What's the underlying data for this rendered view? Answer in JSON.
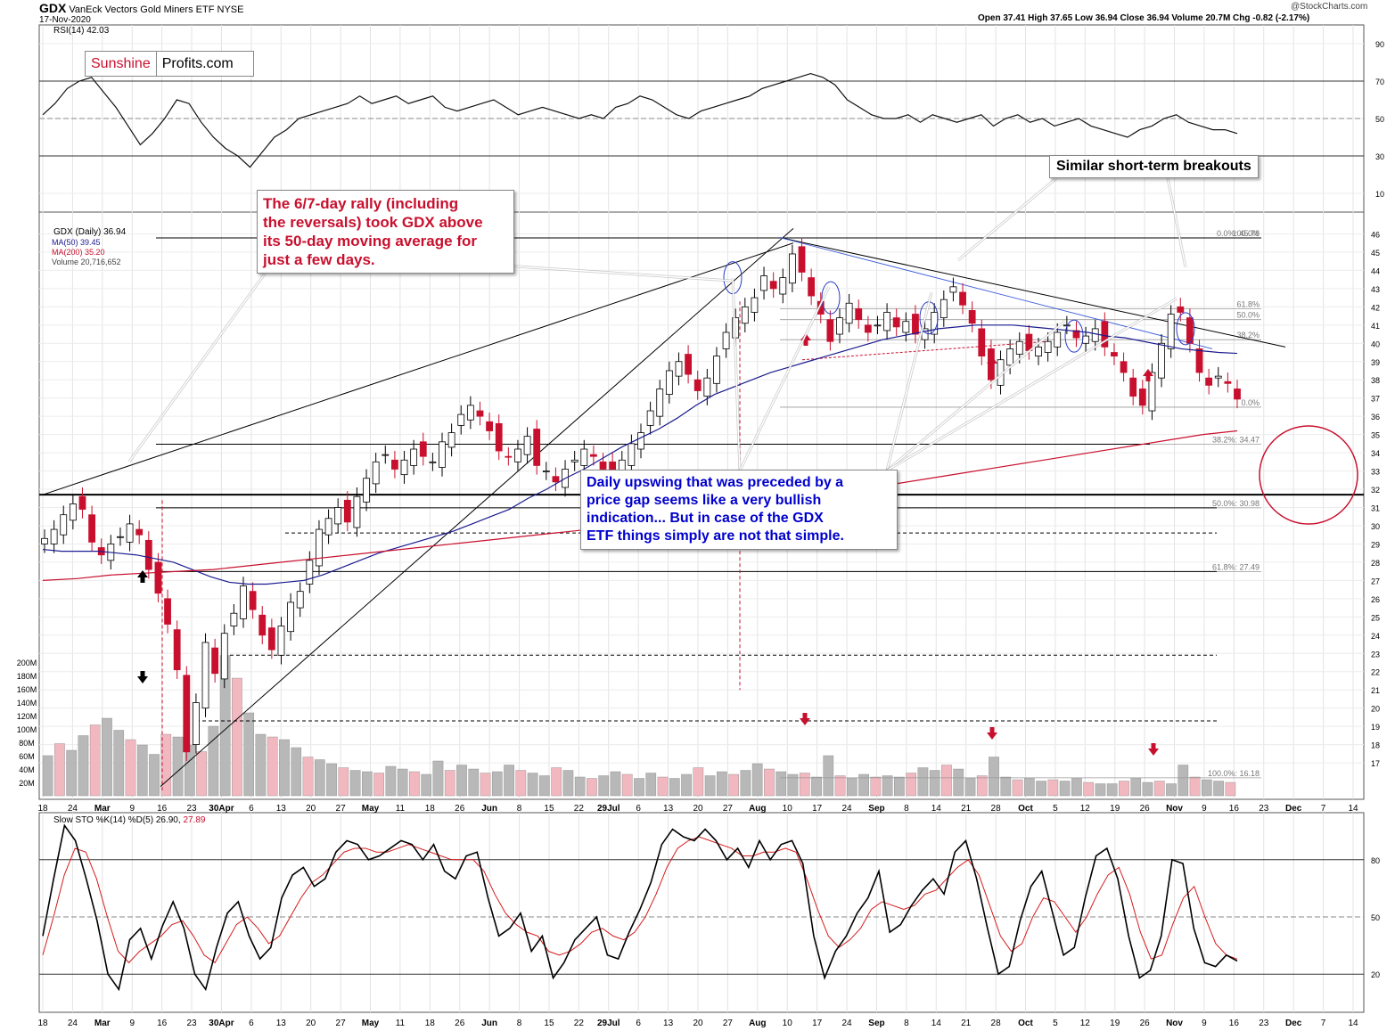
{
  "header": {
    "symbol": "GDX",
    "name": "VanEck Vectors Gold Miners ETF",
    "exchange": "NYSE",
    "date": "17-Nov-2020",
    "watermark": "@StockCharts.com",
    "ohlc": "Open 37.41  High 37.65  Low 36.94  Close 36.94  Volume 20.7M  Chg -0.82 (-2.17%)",
    "rsi_label": "RSI(14) 42.03"
  },
  "logo": {
    "part1": "Sunshine",
    "part2": "Profits.com"
  },
  "legend": {
    "gdx": "GDX (Daily) 36.94",
    "ma50": "MA(50) 39.45",
    "ma200": "MA(200) 35.20",
    "volume": "Volume 20,716,652"
  },
  "sto_label": {
    "k": "Slow STO %K(14) %D(5) 26.90,",
    "d": "27.89"
  },
  "annotations": {
    "rally_text": "The 6/7-day rally (including the reversals) took GDX above its 50-day moving average for just a few days.",
    "rally_lines": [
      "The 6/7-day rally (including",
      "the reversals) took GDX above",
      "its 50-day moving average for",
      "just a few days."
    ],
    "breakouts_text": "Similar short-term breakouts",
    "upswing_lines": [
      "Daily upswing that was preceded by a",
      "price gap seems like a very bullish",
      "indication... But in case of the GDX",
      "ETF things simply are not that simple."
    ]
  },
  "colors": {
    "up": "#ffffff",
    "down": "#c8102e",
    "ma50": "#1b1b8f",
    "ma200": "#c8102e",
    "text_red": "#c8102e",
    "text_blue": "#0000cc",
    "vol_up": "#b8b8b8",
    "vol_down": "#f2b8c0"
  },
  "chart_data": [
    {
      "type": "line",
      "panel": "RSI",
      "title": "RSI(14) 42.03",
      "ylim": [
        0,
        100
      ],
      "y_ticks": [
        "90",
        "70",
        "50",
        "30",
        "10"
      ],
      "reference_lines": [
        70,
        30
      ],
      "values": [
        52,
        58,
        66,
        70,
        72,
        64,
        56,
        46,
        36,
        42,
        50,
        60,
        58,
        48,
        40,
        34,
        30,
        24,
        32,
        40,
        44,
        50,
        52,
        54,
        56,
        58,
        62,
        58,
        60,
        62,
        58,
        60,
        62,
        56,
        54,
        56,
        58,
        60,
        56,
        52,
        54,
        56,
        54,
        52,
        50,
        52,
        50,
        56,
        58,
        62,
        60,
        56,
        52,
        50,
        54,
        56,
        58,
        60,
        62,
        66,
        68,
        70,
        72,
        74,
        72,
        68,
        60,
        56,
        52,
        50,
        50,
        52,
        48,
        52,
        50,
        48,
        50,
        52,
        46,
        50,
        52,
        48,
        50,
        46,
        48,
        50,
        46,
        44,
        42,
        40,
        44,
        46,
        50,
        52,
        48,
        46,
        44,
        44,
        42
      ]
    },
    {
      "type": "candlestick",
      "panel": "Price",
      "ylabel": "",
      "ylim": [
        15,
        47
      ],
      "y_ticks": [
        "46",
        "45",
        "44",
        "43",
        "42",
        "41",
        "40",
        "39",
        "38",
        "37",
        "36",
        "35",
        "34",
        "33",
        "32",
        "31",
        "30",
        "29",
        "28",
        "27",
        "26",
        "25",
        "24",
        "23",
        "22",
        "21",
        "20",
        "19",
        "18",
        "17"
      ],
      "x_ticks": [
        "18",
        "24",
        "Mar",
        "9",
        "16",
        "23",
        "30Apr",
        "6",
        "13",
        "20",
        "27",
        "May",
        "11",
        "18",
        "26",
        "Jun",
        "8",
        "15",
        "22",
        "29Jul",
        "6",
        "13",
        "20",
        "27",
        "Aug",
        "10",
        "17",
        "24",
        "Sep",
        "8",
        "14",
        "21",
        "28",
        "Oct",
        "5",
        "12",
        "19",
        "26",
        "Nov",
        "9",
        "16",
        "23",
        "Dec",
        "7",
        "14"
      ],
      "series": [
        {
          "name": "GDX (Daily) 36.94"
        },
        {
          "name": "MA(50) 39.45"
        },
        {
          "name": "MA(200) 35.20"
        }
      ],
      "close": [
        29.3,
        29.8,
        30.6,
        31.2,
        30.9,
        29.1,
        28.4,
        29.0,
        29.4,
        30.1,
        29.5,
        27.6,
        26.3,
        24.6,
        22.1,
        17.6,
        20.3,
        23.6,
        21.9,
        24.1,
        25.2,
        26.7,
        25.4,
        24.0,
        23.2,
        24.5,
        25.8,
        26.4,
        28.1,
        29.8,
        30.4,
        31.0,
        30.2,
        31.6,
        32.6,
        33.5,
        33.9,
        33.1,
        33.6,
        34.2,
        33.8,
        33.5,
        34.6,
        35.1,
        36.1,
        36.6,
        36.0,
        35.2,
        34.1,
        33.8,
        34.2,
        34.9,
        33.3,
        33.0,
        32.4,
        33.1,
        33.6,
        34.2,
        33.8,
        33.1,
        32.9,
        33.6,
        34.5,
        35.1,
        36.3,
        37.5,
        38.5,
        39.0,
        38.3,
        37.4,
        38.1,
        39.3,
        40.6,
        41.4,
        42.0,
        42.5,
        43.7,
        43.0,
        43.6,
        44.9,
        43.9,
        42.6,
        41.6,
        40.1,
        41.4,
        42.2,
        41.3,
        40.6,
        41.0,
        41.7,
        40.9,
        41.2,
        40.5,
        40.8,
        41.7,
        42.4,
        43.1,
        42.1,
        41.1,
        39.3,
        38.0,
        39.1,
        39.7,
        40.1,
        39.6,
        39.8,
        40.1,
        40.6,
        41.0,
        40.3,
        40.4,
        40.8,
        39.8,
        39.3,
        38.4,
        37.1,
        36.6,
        38.4,
        40.0,
        41.6,
        41.7,
        40.0,
        38.4,
        37.7,
        38.2,
        37.8,
        36.94
      ],
      "ma50": [
        28.7,
        28.6,
        28.6,
        28.6,
        28.5,
        28.4,
        28.2,
        28.0,
        27.6,
        27.2,
        26.9,
        26.8,
        26.8,
        26.9,
        27.0,
        27.3,
        27.7,
        28.1,
        28.5,
        28.8,
        29.1,
        29.4,
        29.7,
        30.1,
        30.5,
        30.9,
        31.5,
        32.0,
        32.6,
        33.1,
        33.7,
        34.3,
        34.8,
        35.3,
        35.9,
        36.6,
        37.2,
        37.6,
        38.0,
        38.4,
        38.7,
        39.0,
        39.3,
        39.6,
        39.9,
        40.2,
        40.4,
        40.6,
        40.8,
        40.9,
        41.0,
        41.0,
        41.0,
        40.9,
        40.8,
        40.7,
        40.6,
        40.4,
        40.3,
        40.1,
        39.9,
        39.7,
        39.6,
        39.5,
        39.45
      ],
      "ma200": [
        27.0,
        27.1,
        27.3,
        27.4,
        27.5,
        27.6,
        27.8,
        28.0,
        28.2,
        28.4,
        28.6,
        28.8,
        29.0,
        29.2,
        29.4,
        29.6,
        29.8,
        30.0,
        30.2,
        30.5,
        30.8,
        31.1,
        31.4,
        31.7,
        32.0,
        32.3,
        32.6,
        32.9,
        33.2,
        33.5,
        33.8,
        34.1,
        34.4,
        34.7,
        35.0,
        35.2
      ],
      "fib_levels": [
        {
          "label": "0.0%: 45.78",
          "value": 45.78
        },
        {
          "label": "100.0%",
          "value": 45.78
        },
        {
          "label": "61.8%",
          "value": 41.9
        },
        {
          "label": "50.0%",
          "value": 41.3
        },
        {
          "label": "38.2%",
          "value": 40.2
        },
        {
          "label": "0.0%",
          "value": 36.5
        },
        {
          "label": "38.2%: 34.47",
          "value": 34.47
        },
        {
          "label": "50.0%: 30.98",
          "value": 30.98
        },
        {
          "label": "61.8%: 27.49",
          "value": 27.49
        },
        {
          "label": "100.0%: 16.18",
          "value": 16.18
        }
      ]
    },
    {
      "type": "bar",
      "panel": "Volume",
      "y_ticks": [
        "200M",
        "180M",
        "160M",
        "140M",
        "120M",
        "100M",
        "80M",
        "60M",
        "40M",
        "20M"
      ],
      "values": [
        60,
        78,
        68,
        90,
        106,
        116,
        98,
        84,
        76,
        62,
        92,
        88,
        76,
        66,
        104,
        210,
        176,
        124,
        92,
        88,
        84,
        72,
        58,
        54,
        48,
        42,
        38,
        36,
        34,
        44,
        40,
        36,
        32,
        52,
        38,
        46,
        40,
        34,
        36,
        46,
        38,
        34,
        30,
        42,
        38,
        28,
        26,
        30,
        36,
        32,
        26,
        34,
        28,
        26,
        32,
        42,
        30,
        36,
        32,
        38,
        48,
        40,
        36,
        32,
        34,
        28,
        60,
        30,
        26,
        32,
        28,
        30,
        28,
        34,
        42,
        38,
        46,
        40,
        26,
        30,
        58,
        28,
        24,
        26,
        22,
        24,
        22,
        26,
        20,
        18,
        18,
        22,
        26,
        20,
        22,
        18,
        46,
        28,
        24,
        22,
        20
      ]
    },
    {
      "type": "line",
      "panel": "Slow STO",
      "title": "Slow STO %K(14) %D(5) 26.90, 27.89",
      "ylim": [
        0,
        100
      ],
      "y_ticks": [
        "80",
        "50",
        "20"
      ],
      "series": [
        {
          "name": "%K",
          "values": [
            40,
            70,
            98,
            90,
            70,
            48,
            20,
            12,
            38,
            44,
            28,
            45,
            58,
            44,
            20,
            12,
            34,
            52,
            58,
            40,
            28,
            34,
            60,
            72,
            76,
            66,
            70,
            84,
            90,
            88,
            80,
            82,
            86,
            90,
            88,
            80,
            88,
            74,
            70,
            82,
            84,
            60,
            40,
            44,
            52,
            32,
            40,
            18,
            26,
            38,
            44,
            50,
            30,
            28,
            42,
            54,
            68,
            88,
            96,
            92,
            90,
            96,
            90,
            80,
            86,
            76,
            90,
            80,
            88,
            90,
            78,
            40,
            18,
            32,
            40,
            52,
            60,
            74,
            42,
            46,
            56,
            64,
            70,
            62,
            84,
            90,
            70,
            44,
            20,
            24,
            48,
            66,
            74,
            52,
            30,
            34,
            60,
            82,
            86,
            70,
            40,
            18,
            22,
            40,
            80,
            78,
            44,
            26,
            24,
            30,
            26.9
          ]
        },
        {
          "name": "%D",
          "values": [
            30,
            50,
            72,
            86,
            84,
            70,
            50,
            32,
            26,
            32,
            36,
            40,
            46,
            48,
            40,
            30,
            26,
            36,
            46,
            50,
            44,
            36,
            40,
            50,
            60,
            68,
            72,
            78,
            84,
            86,
            86,
            84,
            84,
            86,
            88,
            86,
            84,
            82,
            80,
            80,
            80,
            74,
            62,
            52,
            46,
            42,
            40,
            32,
            30,
            32,
            36,
            42,
            44,
            40,
            38,
            42,
            50,
            62,
            76,
            86,
            90,
            92,
            90,
            88,
            86,
            82,
            82,
            84,
            84,
            86,
            84,
            70,
            54,
            40,
            34,
            38,
            44,
            54,
            58,
            56,
            54,
            56,
            62,
            64,
            70,
            76,
            80,
            72,
            56,
            40,
            32,
            36,
            50,
            60,
            58,
            50,
            42,
            50,
            62,
            72,
            76,
            62,
            42,
            28,
            30,
            46,
            60,
            66,
            50,
            36,
            30,
            27.89
          ]
        }
      ]
    }
  ]
}
